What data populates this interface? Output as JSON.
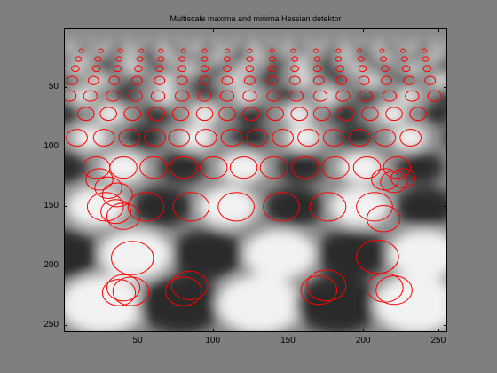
{
  "window": {
    "background": "#7f7f7f"
  },
  "chart_data": {
    "type": "scatter",
    "title": "Multiscale maxima and minima Hessian detektor",
    "xlim": [
      1,
      256
    ],
    "ylim": [
      256,
      1
    ],
    "xticks": [
      50,
      100,
      150,
      200,
      250
    ],
    "yticks": [
      50,
      100,
      150,
      200,
      250
    ],
    "marker_color": "#ff0000",
    "background_image": "grayscale perspective checker/blob pattern (bright and dark blobs receding toward the horizon)",
    "series": [
      {
        "rows": [
          {
            "y": 19,
            "r": 1.5,
            "x": [
              12,
              25,
              38,
              52,
              65,
              80,
              94,
              109,
              124,
              139,
              153,
              168,
              183,
              197,
              212,
              226,
              240
            ]
          },
          {
            "y": 26,
            "r": 2,
            "x": [
              10,
              23,
              37,
              51,
              65,
              79,
              94,
              109,
              124,
              139,
              154,
              169,
              183,
              198,
              213,
              227,
              241
            ]
          },
          {
            "y": 34,
            "r": 2.5,
            "x": [
              8,
              22,
              36,
              50,
              64,
              79,
              94,
              109,
              124,
              139,
              154,
              169,
              184,
              199,
              214,
              228,
              242
            ]
          },
          {
            "y": 44,
            "r": 3.5,
            "x": [
              6,
              20,
              34,
              49,
              64,
              79,
              94,
              109,
              124,
              139,
              154,
              170,
              185,
              200,
              215,
              230,
              244
            ]
          },
          {
            "y": 57,
            "r": 4.5,
            "x": [
              4,
              18,
              33,
              48,
              63,
              79,
              94,
              109,
              124,
              140,
              155,
              171,
              186,
              201,
              217,
              232,
              247
            ]
          },
          {
            "y": 72,
            "r": 5.5,
            "x": [
              15,
              30,
              46,
              62,
              78,
              94,
              109,
              125,
              141,
              157,
              172,
              188,
              204,
              220,
              236
            ]
          },
          {
            "y": 92,
            "r": 7,
            "x": [
              9,
              27,
              44,
              61,
              77,
              95,
              112,
              129,
              146,
              163,
              180,
              197,
              214,
              231
            ]
          },
          {
            "y": 117,
            "r": 9,
            "x": [
              22,
              40,
              60,
              80,
              100,
              120,
              140,
              161,
              181,
              202,
              222
            ]
          },
          {
            "y": 150,
            "r": 12,
            "x": [
              28,
              55,
              85,
              115,
              145,
              176,
              207
            ]
          }
        ],
        "extra": [
          {
            "x": 24,
            "y": 127,
            "r": 9
          },
          {
            "x": 30,
            "y": 134,
            "r": 9
          },
          {
            "x": 36,
            "y": 140,
            "r": 10
          },
          {
            "x": 40,
            "y": 158,
            "r": 11
          },
          {
            "x": 35,
            "y": 154,
            "r": 10
          },
          {
            "x": 214,
            "y": 127,
            "r": 9
          },
          {
            "x": 220,
            "y": 129,
            "r": 9
          },
          {
            "x": 226,
            "y": 126,
            "r": 8
          },
          {
            "x": 213,
            "y": 160,
            "r": 11
          },
          {
            "x": 46,
            "y": 193,
            "r": 14
          },
          {
            "x": 209,
            "y": 192,
            "r": 14
          },
          {
            "x": 40,
            "y": 218,
            "r": 11
          },
          {
            "x": 45,
            "y": 221,
            "r": 12
          },
          {
            "x": 37,
            "y": 222,
            "r": 11
          },
          {
            "x": 84,
            "y": 216,
            "r": 12
          },
          {
            "x": 80,
            "y": 221,
            "r": 12
          },
          {
            "x": 175,
            "y": 216,
            "r": 13
          },
          {
            "x": 170,
            "y": 220,
            "r": 12
          },
          {
            "x": 214,
            "y": 218,
            "r": 12
          },
          {
            "x": 220,
            "y": 220,
            "r": 12
          }
        ]
      }
    ]
  }
}
